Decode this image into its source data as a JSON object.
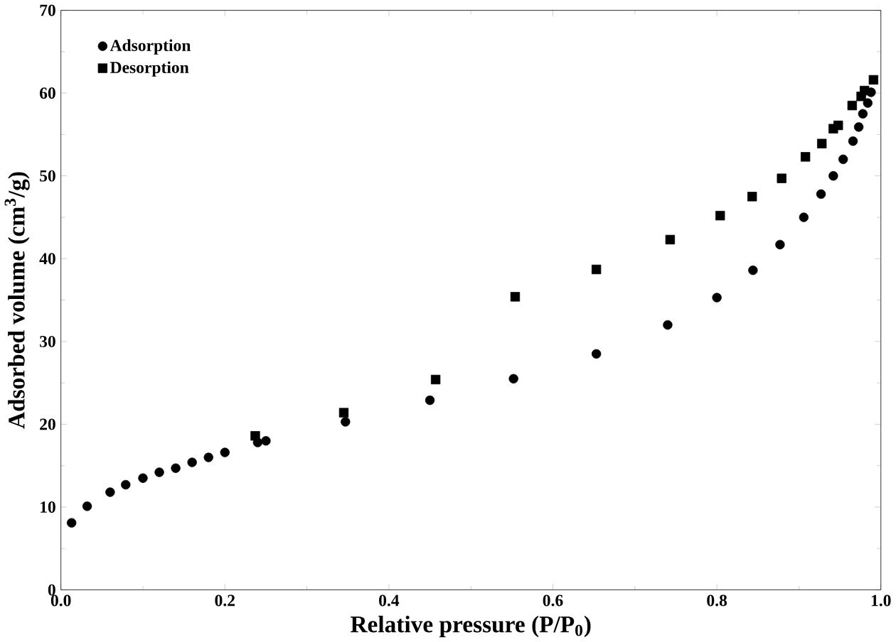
{
  "chart_data": {
    "type": "scatter",
    "xlabel": "Relative pressure (P/P$_{0}$)",
    "ylabel": "Adsorbed volume (cm$^{3}$/g)",
    "xlim": [
      0,
      1
    ],
    "ylim": [
      0,
      70
    ],
    "xticks": [
      {
        "value": 0,
        "label": "0.0"
      },
      {
        "value": 0.2,
        "label": "0.2"
      },
      {
        "value": 0.4,
        "label": "0.4"
      },
      {
        "value": 0.6,
        "label": "0.6"
      },
      {
        "value": 0.8,
        "label": "0.8"
      },
      {
        "value": 1,
        "label": "1.0"
      }
    ],
    "yticks": [
      0,
      10,
      20,
      30,
      40,
      50,
      60,
      70
    ],
    "legend": "top left",
    "grid": false,
    "series": [
      {
        "name": "Adsorption",
        "color": "#000000",
        "marker": "circle",
        "x": [
          0.013,
          0.032,
          0.06,
          0.079,
          0.1,
          0.12,
          0.14,
          0.16,
          0.18,
          0.2,
          0.24,
          0.25,
          0.347,
          0.45,
          0.552,
          0.653,
          0.74,
          0.8,
          0.844,
          0.877,
          0.906,
          0.927,
          0.942,
          0.954,
          0.966,
          0.973,
          0.978,
          0.984,
          0.988
        ],
        "values": [
          8.1,
          10.1,
          11.8,
          12.7,
          13.5,
          14.2,
          14.7,
          15.4,
          16.0,
          16.6,
          17.8,
          18.0,
          20.3,
          22.9,
          25.5,
          28.5,
          32.0,
          35.3,
          38.6,
          41.7,
          45.0,
          47.8,
          50.0,
          52.0,
          54.2,
          55.9,
          57.5,
          58.8,
          60.1
        ]
      },
      {
        "name": "Desorption",
        "color": "#000000",
        "marker": "square",
        "x": [
          0.991,
          0.98,
          0.976,
          0.965,
          0.948,
          0.942,
          0.928,
          0.908,
          0.879,
          0.843,
          0.804,
          0.743,
          0.653,
          0.554,
          0.457,
          0.345,
          0.237
        ],
        "values": [
          61.6,
          60.3,
          59.6,
          58.5,
          56.1,
          55.7,
          53.9,
          52.3,
          49.7,
          47.5,
          45.2,
          42.3,
          38.7,
          35.4,
          25.4,
          21.4,
          18.6
        ]
      }
    ]
  }
}
